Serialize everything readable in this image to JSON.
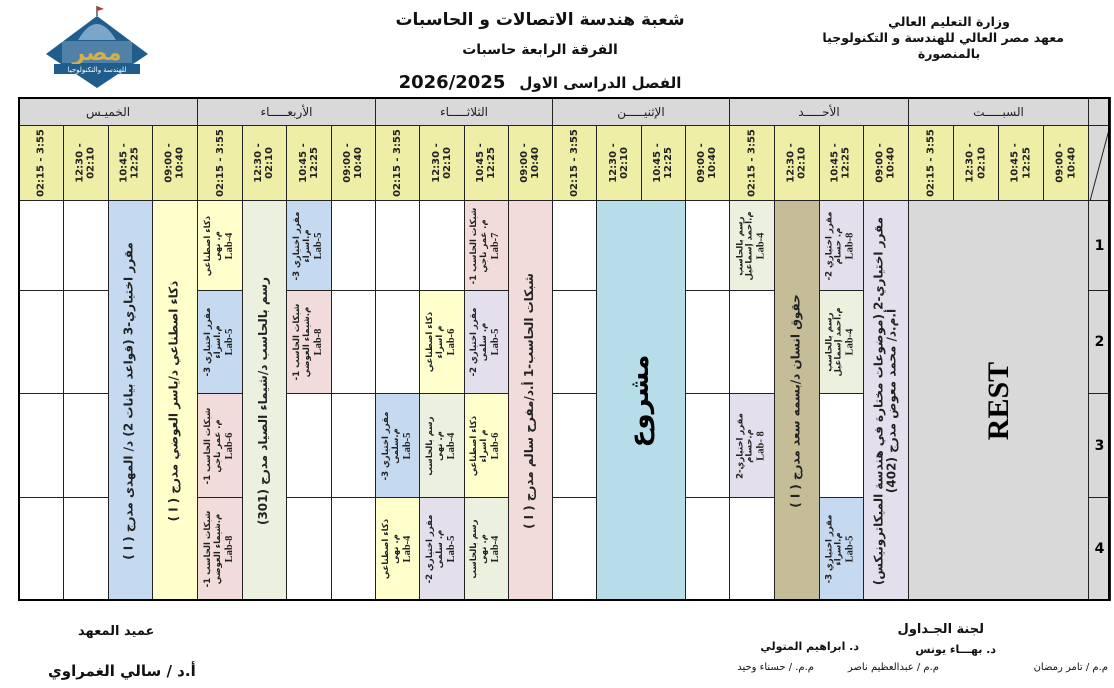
{
  "header": {
    "ministry": [
      "وزارة التعليم العالي",
      "معهد مصر العالي للهندسة و التكنولوجيا",
      "بالمنصورة"
    ],
    "department": "شعبة هندسة الاتصالات و الحاسبات",
    "level": "الفرقة الرابعة حاسبات",
    "term": "الفصل الدراسى الاول",
    "year": "2026/2025",
    "logo_text": "مصر للهندسة والتكنولوجيا"
  },
  "days": [
    "السبـــــت",
    "الأحـــــد",
    "الإثنيـــــن",
    "الثلاثـــــاء",
    "الأربعـــــاء",
    "الخميـس"
  ],
  "time_slots": [
    "09:00 - 10:40",
    "10:45 - 12:25",
    "12:30 - 02:10",
    "02:15 - 3:55"
  ],
  "groups": [
    "1",
    "2",
    "3",
    "4"
  ],
  "colors": {
    "blue": "#c5d9f1",
    "yellow": "#ffffcc",
    "pink": "#f2dcdb",
    "purple": "#e4dfec",
    "green": "#ebf1de",
    "khaki": "#c4bd97",
    "cyan": "#b7dee8",
    "gray": "#d9d9d9"
  },
  "sessions": [
    {
      "day": 0,
      "slot": 0,
      "slot_span": 4,
      "groups": [
        1,
        4
      ],
      "color": "gray",
      "style": "rest",
      "lines": [
        "REST"
      ]
    },
    {
      "day": 1,
      "slot": 0,
      "groups": [
        1,
        4
      ],
      "color": "purple",
      "style": "big",
      "lines": [
        "مقرر اختياري-2 (موضوعات مختارة في هندسة الميكاترونيكس)",
        "أ.م.د/ محمد معوض   مدرج (402)"
      ]
    },
    {
      "day": 1,
      "slot": 1,
      "groups": [
        1,
        1
      ],
      "color": "purple",
      "style": "lab",
      "lines": [
        "مقرر اختياري 2-",
        "م. حسام",
        "Lab-8"
      ]
    },
    {
      "day": 1,
      "slot": 1,
      "groups": [
        2,
        2
      ],
      "color": "green",
      "style": "lab",
      "lines": [
        "رسم بالحاسب",
        "م.أحمد إسماعيل",
        "Lab-4"
      ]
    },
    {
      "day": 1,
      "slot": 1,
      "groups": [
        4,
        4
      ],
      "color": "blue",
      "style": "lab",
      "lines": [
        "مقرر اختياري 3-",
        "م.اسراء",
        "Lab-5"
      ]
    },
    {
      "day": 1,
      "slot": 2,
      "groups": [
        1,
        4
      ],
      "color": "khaki",
      "style": "big",
      "lines": [
        "حقوق انسان      د/بسمه سعد      مدرج ( ا )"
      ]
    },
    {
      "day": 1,
      "slot": 3,
      "groups": [
        1,
        1
      ],
      "color": "green",
      "style": "lab",
      "lines": [
        "رسم بالحاسب",
        "م.أحمد إسماعيل",
        "Lab-4"
      ]
    },
    {
      "day": 1,
      "slot": 3,
      "groups": [
        3,
        3
      ],
      "color": "purple",
      "style": "lab",
      "lines": [
        "مقرر اختياري-2",
        "م.حسام",
        "Lab- 8"
      ]
    },
    {
      "day": 2,
      "slot": 1,
      "slot_span": 2,
      "groups": [
        1,
        4
      ],
      "color": "cyan",
      "style": "huge",
      "lines": [
        "مشروع"
      ]
    },
    {
      "day": 3,
      "slot": 0,
      "groups": [
        1,
        4
      ],
      "color": "pink",
      "style": "big",
      "lines": [
        "شبكات الحاسب-1     أ.د/مفرح سالم     مدرج ( ا )"
      ]
    },
    {
      "day": 3,
      "slot": 1,
      "groups": [
        1,
        1
      ],
      "color": "pink",
      "style": "lab",
      "lines": [
        "شبكات الحاسب 1-",
        "م. عمر ناجي",
        "Lab-7"
      ]
    },
    {
      "day": 3,
      "slot": 1,
      "groups": [
        2,
        2
      ],
      "color": "purple",
      "style": "lab",
      "lines": [
        "مقرر اختياري 2-",
        "م. سلمى",
        "Lab-5"
      ]
    },
    {
      "day": 3,
      "slot": 1,
      "groups": [
        3,
        3
      ],
      "color": "yellow",
      "style": "lab",
      "lines": [
        "ذكاء اصطناعي",
        "م اسراء",
        "Lab-6"
      ]
    },
    {
      "day": 3,
      "slot": 1,
      "groups": [
        4,
        4
      ],
      "color": "green",
      "style": "lab",
      "lines": [
        "رسم بالحاسب",
        "م. نهى",
        "Lab-4"
      ]
    },
    {
      "day": 3,
      "slot": 2,
      "groups": [
        2,
        2
      ],
      "color": "yellow",
      "style": "lab",
      "lines": [
        "ذكاء اصطناعي",
        "م اسراء",
        "Lab-6"
      ]
    },
    {
      "day": 3,
      "slot": 2,
      "groups": [
        3,
        3
      ],
      "color": "green",
      "style": "lab",
      "lines": [
        "رسم بالحاسب",
        "م. نهى",
        "Lab-4"
      ]
    },
    {
      "day": 3,
      "slot": 2,
      "groups": [
        4,
        4
      ],
      "color": "purple",
      "style": "lab",
      "lines": [
        "مقرر اختياري 2-",
        "م. سلمى",
        "Lab-5"
      ]
    },
    {
      "day": 3,
      "slot": 3,
      "groups": [
        3,
        3
      ],
      "color": "blue",
      "style": "lab",
      "lines": [
        "مقرر اختياري 3-",
        "م.سلمى",
        "Lab-5"
      ]
    },
    {
      "day": 3,
      "slot": 3,
      "groups": [
        4,
        4
      ],
      "color": "yellow",
      "style": "lab",
      "lines": [
        "ذكاء اصطناعي",
        "م. نهى",
        "Lab-4"
      ]
    },
    {
      "day": 4,
      "slot": 1,
      "groups": [
        1,
        1
      ],
      "color": "blue",
      "style": "lab",
      "lines": [
        "مقرر اختياري 3-",
        "م.اسراء",
        "Lab-5"
      ]
    },
    {
      "day": 4,
      "slot": 1,
      "groups": [
        2,
        2
      ],
      "color": "pink",
      "style": "lab",
      "lines": [
        "شبكات الحاسب 1-",
        "م.شيماء العوضي",
        "Lab-8"
      ]
    },
    {
      "day": 4,
      "slot": 2,
      "groups": [
        1,
        4
      ],
      "color": "green",
      "style": "big",
      "lines": [
        "رسم بالحاسب      د/شيماء الصياد      مدرج (301)"
      ]
    },
    {
      "day": 4,
      "slot": 3,
      "groups": [
        1,
        1
      ],
      "color": "yellow",
      "style": "lab",
      "lines": [
        "ذكاء اصطناعي",
        "م. نهى",
        "Lab-4"
      ]
    },
    {
      "day": 4,
      "slot": 3,
      "groups": [
        2,
        2
      ],
      "color": "blue",
      "style": "lab",
      "lines": [
        "مقرر اختياري 3-",
        "م.اسراء",
        "Lab-5"
      ]
    },
    {
      "day": 4,
      "slot": 3,
      "groups": [
        3,
        3
      ],
      "color": "pink",
      "style": "lab",
      "lines": [
        "شبكات الحاسب 1-",
        "م. عمر ناجي",
        "Lab-6"
      ]
    },
    {
      "day": 4,
      "slot": 3,
      "groups": [
        4,
        4
      ],
      "color": "pink",
      "style": "lab",
      "lines": [
        "شبكات الحاسب 1-",
        "م.شيماء العوضي",
        "Lab-8"
      ]
    },
    {
      "day": 5,
      "slot": 0,
      "groups": [
        1,
        4
      ],
      "color": "yellow",
      "style": "big",
      "lines": [
        "ذكاء اصطناعي      د/ياسر العوضي      مدرج ( ا )"
      ]
    },
    {
      "day": 5,
      "slot": 1,
      "groups": [
        1,
        4
      ],
      "color": "blue",
      "style": "big",
      "lines": [
        "مقرر اختياري-3  (قواعد بيانات 2)   د/ المهدى   مدرج ( ا )"
      ]
    }
  ],
  "footer": {
    "committee_title": "لجنة الجـداول",
    "committee_members": [
      "د. بهـــاء يونس",
      "د. ابراهيم المتولي"
    ],
    "assistants": [
      "م.م / تامر رمضان",
      "م.م / عبدالعظيم ناصر",
      "م.م. / حسناء وحيد"
    ],
    "dean_title": "عميد المعهد",
    "dean_name": "أ.د / سالي الغمراوي"
  }
}
